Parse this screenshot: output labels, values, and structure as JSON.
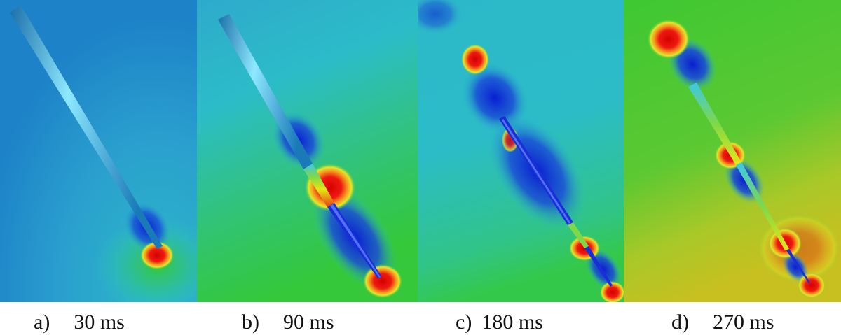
{
  "panels": [
    {
      "id": "a",
      "letter": "a)",
      "time": "30 ms"
    },
    {
      "id": "b",
      "letter": "b)",
      "time": "90 ms"
    },
    {
      "id": "c",
      "letter": "c)",
      "time": "180 ms"
    },
    {
      "id": "d",
      "letter": "d)",
      "time": "270 ms"
    }
  ],
  "colors": {
    "background_a": "#1d82c8",
    "field_cyan": "#2cbcc8",
    "field_green": "#32c832",
    "low_blue": "#0a1ed2",
    "high_red": "#e61414",
    "mid_yellow": "#e6e614",
    "probe_cyan": "#3cc8e6"
  }
}
